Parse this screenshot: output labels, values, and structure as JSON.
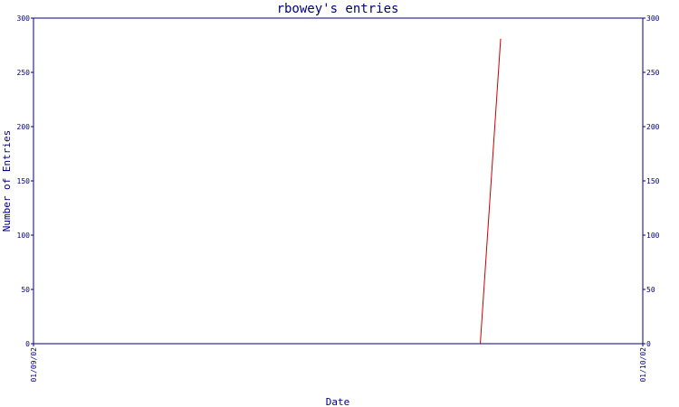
{
  "chart_data": {
    "type": "line",
    "title": "rbowey's entries",
    "xlabel": "Date",
    "ylabel": "Number of Entries",
    "x_ticks": [
      "01/09/02",
      "01/10/02"
    ],
    "ylim": [
      0,
      300
    ],
    "y_ticks": [
      0,
      50,
      100,
      150,
      200,
      250,
      300
    ],
    "series": [
      {
        "color": "#cc0000",
        "x": [
          "01/09/02",
          "01/09/24",
          "01/09/25",
          "01/10/02"
        ],
        "values": [
          0,
          0,
          281,
          281
        ],
        "drawn_x": [
          "01/09/24",
          "01/09/25"
        ],
        "drawn_values": [
          0,
          281
        ]
      }
    ],
    "axis_color": "#000080",
    "grid": false,
    "legend": "none"
  }
}
